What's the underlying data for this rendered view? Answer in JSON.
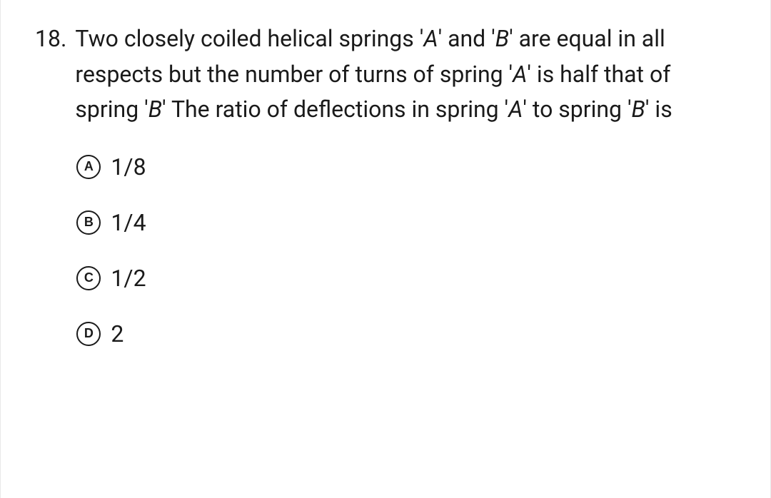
{
  "question": {
    "number": "18.",
    "text_parts": {
      "p1": "Two closely coiled helical springs '",
      "a1": "A",
      "p2": "' and '",
      "b1": "B",
      "p3": "' are equal in all respects but the number of turns of spring '",
      "a2": "A",
      "p4": "' is half that of spring '",
      "b2": "B",
      "p5": "' The ratio of deflections in spring '",
      "a3": "A",
      "p6": "' to spring '",
      "b3": "B",
      "p7": "' is"
    },
    "options": [
      {
        "letter": "A",
        "text": "1/8"
      },
      {
        "letter": "B",
        "text": "1/4"
      },
      {
        "letter": "C",
        "text": "1/2"
      },
      {
        "letter": "D",
        "text": "2"
      }
    ]
  },
  "style": {
    "text_color": "#1a1a1a",
    "background_color": "#ffffff",
    "question_fontsize": 32,
    "option_fontsize": 32,
    "option_letter_fontsize": 18,
    "option_circle_diameter": 34,
    "option_circle_border_width": 2.5,
    "line_height": 1.55,
    "option_gap": 40
  }
}
